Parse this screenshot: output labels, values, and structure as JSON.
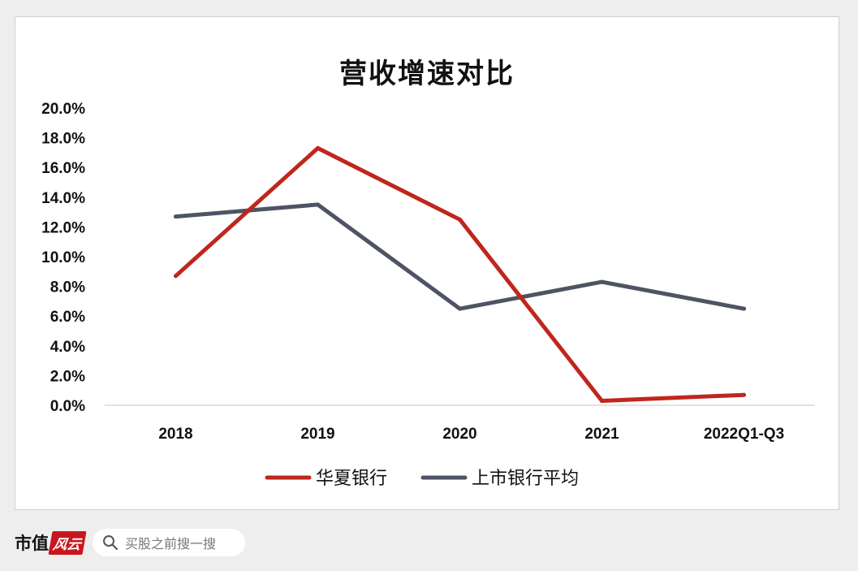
{
  "chart_data": {
    "type": "line",
    "title": "营收增速对比",
    "categories": [
      "2018",
      "2019",
      "2020",
      "2021",
      "2022Q1-Q3"
    ],
    "ylim": [
      0,
      20
    ],
    "yticks": [
      "0.0%",
      "2.0%",
      "4.0%",
      "6.0%",
      "8.0%",
      "10.0%",
      "12.0%",
      "14.0%",
      "16.0%",
      "18.0%",
      "20.0%"
    ],
    "ytick_values": [
      0,
      2,
      4,
      6,
      8,
      10,
      12,
      14,
      16,
      18,
      20
    ],
    "grid": false,
    "legend_position": "bottom",
    "series": [
      {
        "name": "华夏银行",
        "color": "#c0261e",
        "values": [
          8.7,
          17.3,
          12.5,
          0.3,
          0.7
        ]
      },
      {
        "name": "上市银行平均",
        "color": "#4e5464",
        "values": [
          12.7,
          13.5,
          6.5,
          8.3,
          6.5
        ]
      }
    ]
  },
  "footer": {
    "brand_text": "市值",
    "brand_badge": "风云",
    "search_placeholder": "买股之前搜一搜",
    "search_icon": "search-icon"
  }
}
